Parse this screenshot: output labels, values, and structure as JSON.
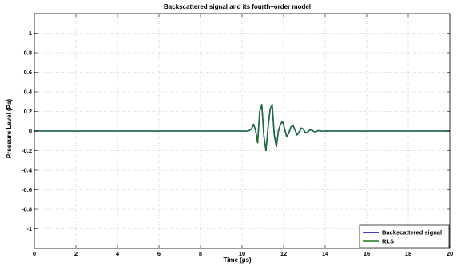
{
  "chart_data": {
    "type": "line",
    "title": "Backscattered signal and its fourth–order model",
    "xlabel": "Time (µs)",
    "ylabel": "Pressure Level (Pa)",
    "xlim": [
      0,
      20
    ],
    "ylim": [
      -1.2,
      1.2
    ],
    "xticks": [
      0,
      2,
      4,
      6,
      8,
      10,
      12,
      14,
      16,
      18,
      20
    ],
    "yticks": [
      -1,
      -0.8,
      -0.6,
      -0.4,
      -0.2,
      0,
      0.2,
      0.4,
      0.6,
      0.8,
      1
    ],
    "grid": true,
    "legend_position": "bottom-right",
    "series": [
      {
        "name": "Backscattered signal",
        "color": "#0000cc",
        "x": [
          0,
          10.3,
          10.45,
          10.55,
          10.65,
          10.75,
          10.85,
          10.95,
          11.05,
          11.15,
          11.25,
          11.35,
          11.45,
          11.55,
          11.65,
          11.75,
          11.85,
          11.95,
          12.05,
          12.15,
          12.25,
          12.35,
          12.45,
          12.55,
          12.65,
          12.75,
          12.85,
          12.95,
          13.05,
          13.15,
          13.25,
          13.35,
          13.45,
          13.55,
          13.65,
          13.75,
          13.85,
          14.0,
          14.2,
          20
        ],
        "y": [
          0,
          0,
          0.02,
          0.07,
          0.01,
          -0.12,
          0.2,
          0.27,
          -0.05,
          -0.2,
          0.03,
          0.22,
          0.27,
          -0.04,
          -0.16,
          0.0,
          0.07,
          0.1,
          0.02,
          -0.06,
          -0.02,
          0.04,
          0.06,
          0.01,
          -0.04,
          -0.01,
          0.03,
          0.02,
          -0.02,
          -0.01,
          0.01,
          0.012,
          -0.005,
          -0.008,
          0.004,
          0.003,
          -0.002,
          0.001,
          0,
          0
        ]
      },
      {
        "name": "RLS",
        "color": "#1a7a1a",
        "x": [
          0,
          10.3,
          10.45,
          10.55,
          10.65,
          10.75,
          10.85,
          10.95,
          11.05,
          11.15,
          11.25,
          11.35,
          11.45,
          11.55,
          11.65,
          11.75,
          11.85,
          11.95,
          12.05,
          12.15,
          12.25,
          12.35,
          12.45,
          12.55,
          12.65,
          12.75,
          12.85,
          12.95,
          13.05,
          13.15,
          13.25,
          13.35,
          13.45,
          13.55,
          13.65,
          13.75,
          13.85,
          14.0,
          14.2,
          20
        ],
        "y": [
          0,
          0,
          0.02,
          0.07,
          0.01,
          -0.12,
          0.2,
          0.27,
          -0.05,
          -0.2,
          0.03,
          0.22,
          0.27,
          -0.04,
          -0.16,
          0.0,
          0.07,
          0.1,
          0.02,
          -0.06,
          -0.02,
          0.04,
          0.06,
          0.01,
          -0.04,
          -0.01,
          0.03,
          0.02,
          -0.02,
          -0.01,
          0.01,
          0.012,
          -0.005,
          -0.008,
          0.004,
          0.003,
          -0.002,
          0.001,
          0,
          0
        ]
      }
    ]
  }
}
